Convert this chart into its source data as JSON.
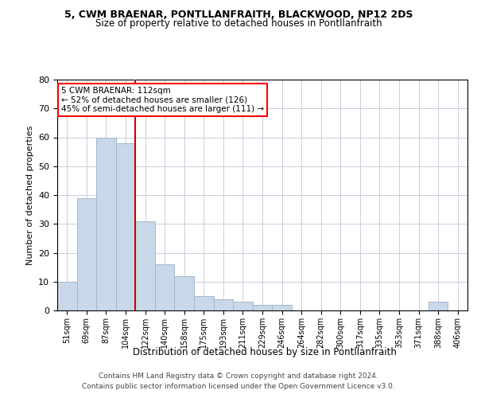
{
  "title1": "5, CWM BRAENAR, PONTLLANFRAITH, BLACKWOOD, NP12 2DS",
  "title2": "Size of property relative to detached houses in Pontllanfraith",
  "xlabel": "Distribution of detached houses by size in Pontllanfraith",
  "ylabel": "Number of detached properties",
  "categories": [
    "51sqm",
    "69sqm",
    "87sqm",
    "104sqm",
    "122sqm",
    "140sqm",
    "158sqm",
    "175sqm",
    "193sqm",
    "211sqm",
    "229sqm",
    "246sqm",
    "264sqm",
    "282sqm",
    "300sqm",
    "317sqm",
    "335sqm",
    "353sqm",
    "371sqm",
    "388sqm",
    "406sqm"
  ],
  "values": [
    10,
    39,
    60,
    58,
    31,
    16,
    12,
    5,
    4,
    3,
    2,
    2,
    0,
    0,
    0,
    0,
    0,
    0,
    0,
    3,
    0
  ],
  "bar_color": "#c8d8e8",
  "bar_edgecolor": "#a0b8cc",
  "ylim": [
    0,
    80
  ],
  "yticks": [
    0,
    10,
    20,
    30,
    40,
    50,
    60,
    70,
    80
  ],
  "annotation_box_text": "5 CWM BRAENAR: 112sqm\n← 52% of detached houses are smaller (126)\n45% of semi-detached houses are larger (111) →",
  "vline_color": "#cc0000",
  "footnote1": "Contains HM Land Registry data © Crown copyright and database right 2024.",
  "footnote2": "Contains public sector information licensed under the Open Government Licence v3.0.",
  "background_color": "#ffffff",
  "grid_color": "#c8d0dc"
}
